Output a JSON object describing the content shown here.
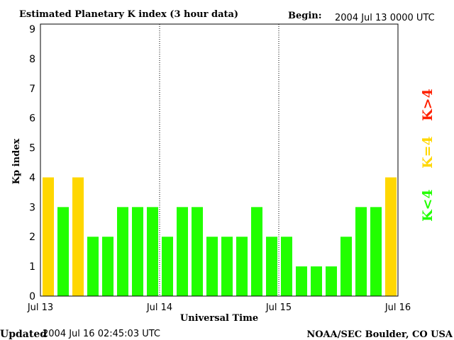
{
  "header": {
    "title": "Estimated Planetary K index (3 hour data)",
    "begin_label": "Begin:",
    "begin_value": "2004 Jul 13 0000 UTC"
  },
  "footer": {
    "updated_label": "Updated",
    "updated_value": "2004 Jul 16 02:45:03 UTC",
    "source": "NOAA/SEC Boulder, CO USA"
  },
  "legend": {
    "low": "K<4",
    "mid": "K=4",
    "high": "K>4"
  },
  "colors": {
    "low": "#22ff00",
    "mid": "#ffd700",
    "high": "#ff2000"
  },
  "chart_data": {
    "type": "bar",
    "title": "Estimated Planetary K index (3 hour data)",
    "xlabel": "Universal Time",
    "ylabel": "Kp index",
    "ylim": [
      0,
      9
    ],
    "yticks": [
      "0",
      "1",
      "2",
      "3",
      "4",
      "5",
      "6",
      "7",
      "8",
      "9"
    ],
    "xticks": [
      "Jul 13",
      "Jul 14",
      "Jul 15",
      "Jul 16"
    ],
    "interval_hours": 3,
    "values": [
      4,
      3,
      4,
      2,
      2,
      3,
      3,
      3,
      2,
      3,
      3,
      2,
      2,
      2,
      3,
      2,
      2,
      1,
      1,
      1,
      2,
      3,
      3,
      4
    ]
  }
}
